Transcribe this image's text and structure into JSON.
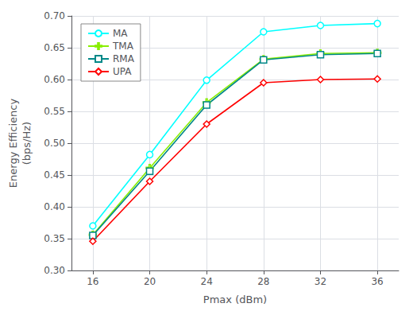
{
  "chart_data": {
    "type": "line",
    "xlabel": "Pmax (dBm)",
    "ylabel": "Energy Efficiency\n(bps/Hz)",
    "x": [
      16,
      20,
      24,
      28,
      32,
      36
    ],
    "series": [
      {
        "name": "MA",
        "color": "#00FFFF",
        "marker": "circle",
        "values": [
          0.37,
          0.482,
          0.599,
          0.675,
          0.685,
          0.688
        ]
      },
      {
        "name": "TMA",
        "color": "#88EE00",
        "marker": "plus",
        "values": [
          0.356,
          0.461,
          0.564,
          0.632,
          0.641,
          0.642
        ]
      },
      {
        "name": "RMA",
        "color": "#008888",
        "marker": "square",
        "values": [
          0.355,
          0.456,
          0.56,
          0.631,
          0.639,
          0.641
        ]
      },
      {
        "name": "UPA",
        "color": "#FF0000",
        "marker": "diamond",
        "values": [
          0.346,
          0.44,
          0.53,
          0.595,
          0.6,
          0.601
        ]
      }
    ],
    "xlim": [
      14.5,
      37.5
    ],
    "ylim": [
      0.3,
      0.7
    ],
    "xticks": [
      16,
      20,
      24,
      28,
      32,
      36
    ],
    "yticks": [
      {
        "value": 0.3,
        "label": "0.30"
      },
      0.35,
      {
        "value": 0.4,
        "label": "0.40"
      },
      0.45,
      {
        "value": 0.5,
        "label": "0.50"
      },
      0.55,
      {
        "value": 0.6,
        "label": "0.60"
      },
      0.65,
      {
        "value": 0.7,
        "label": "0.70"
      }
    ],
    "grid": true,
    "legend": "upper left"
  }
}
